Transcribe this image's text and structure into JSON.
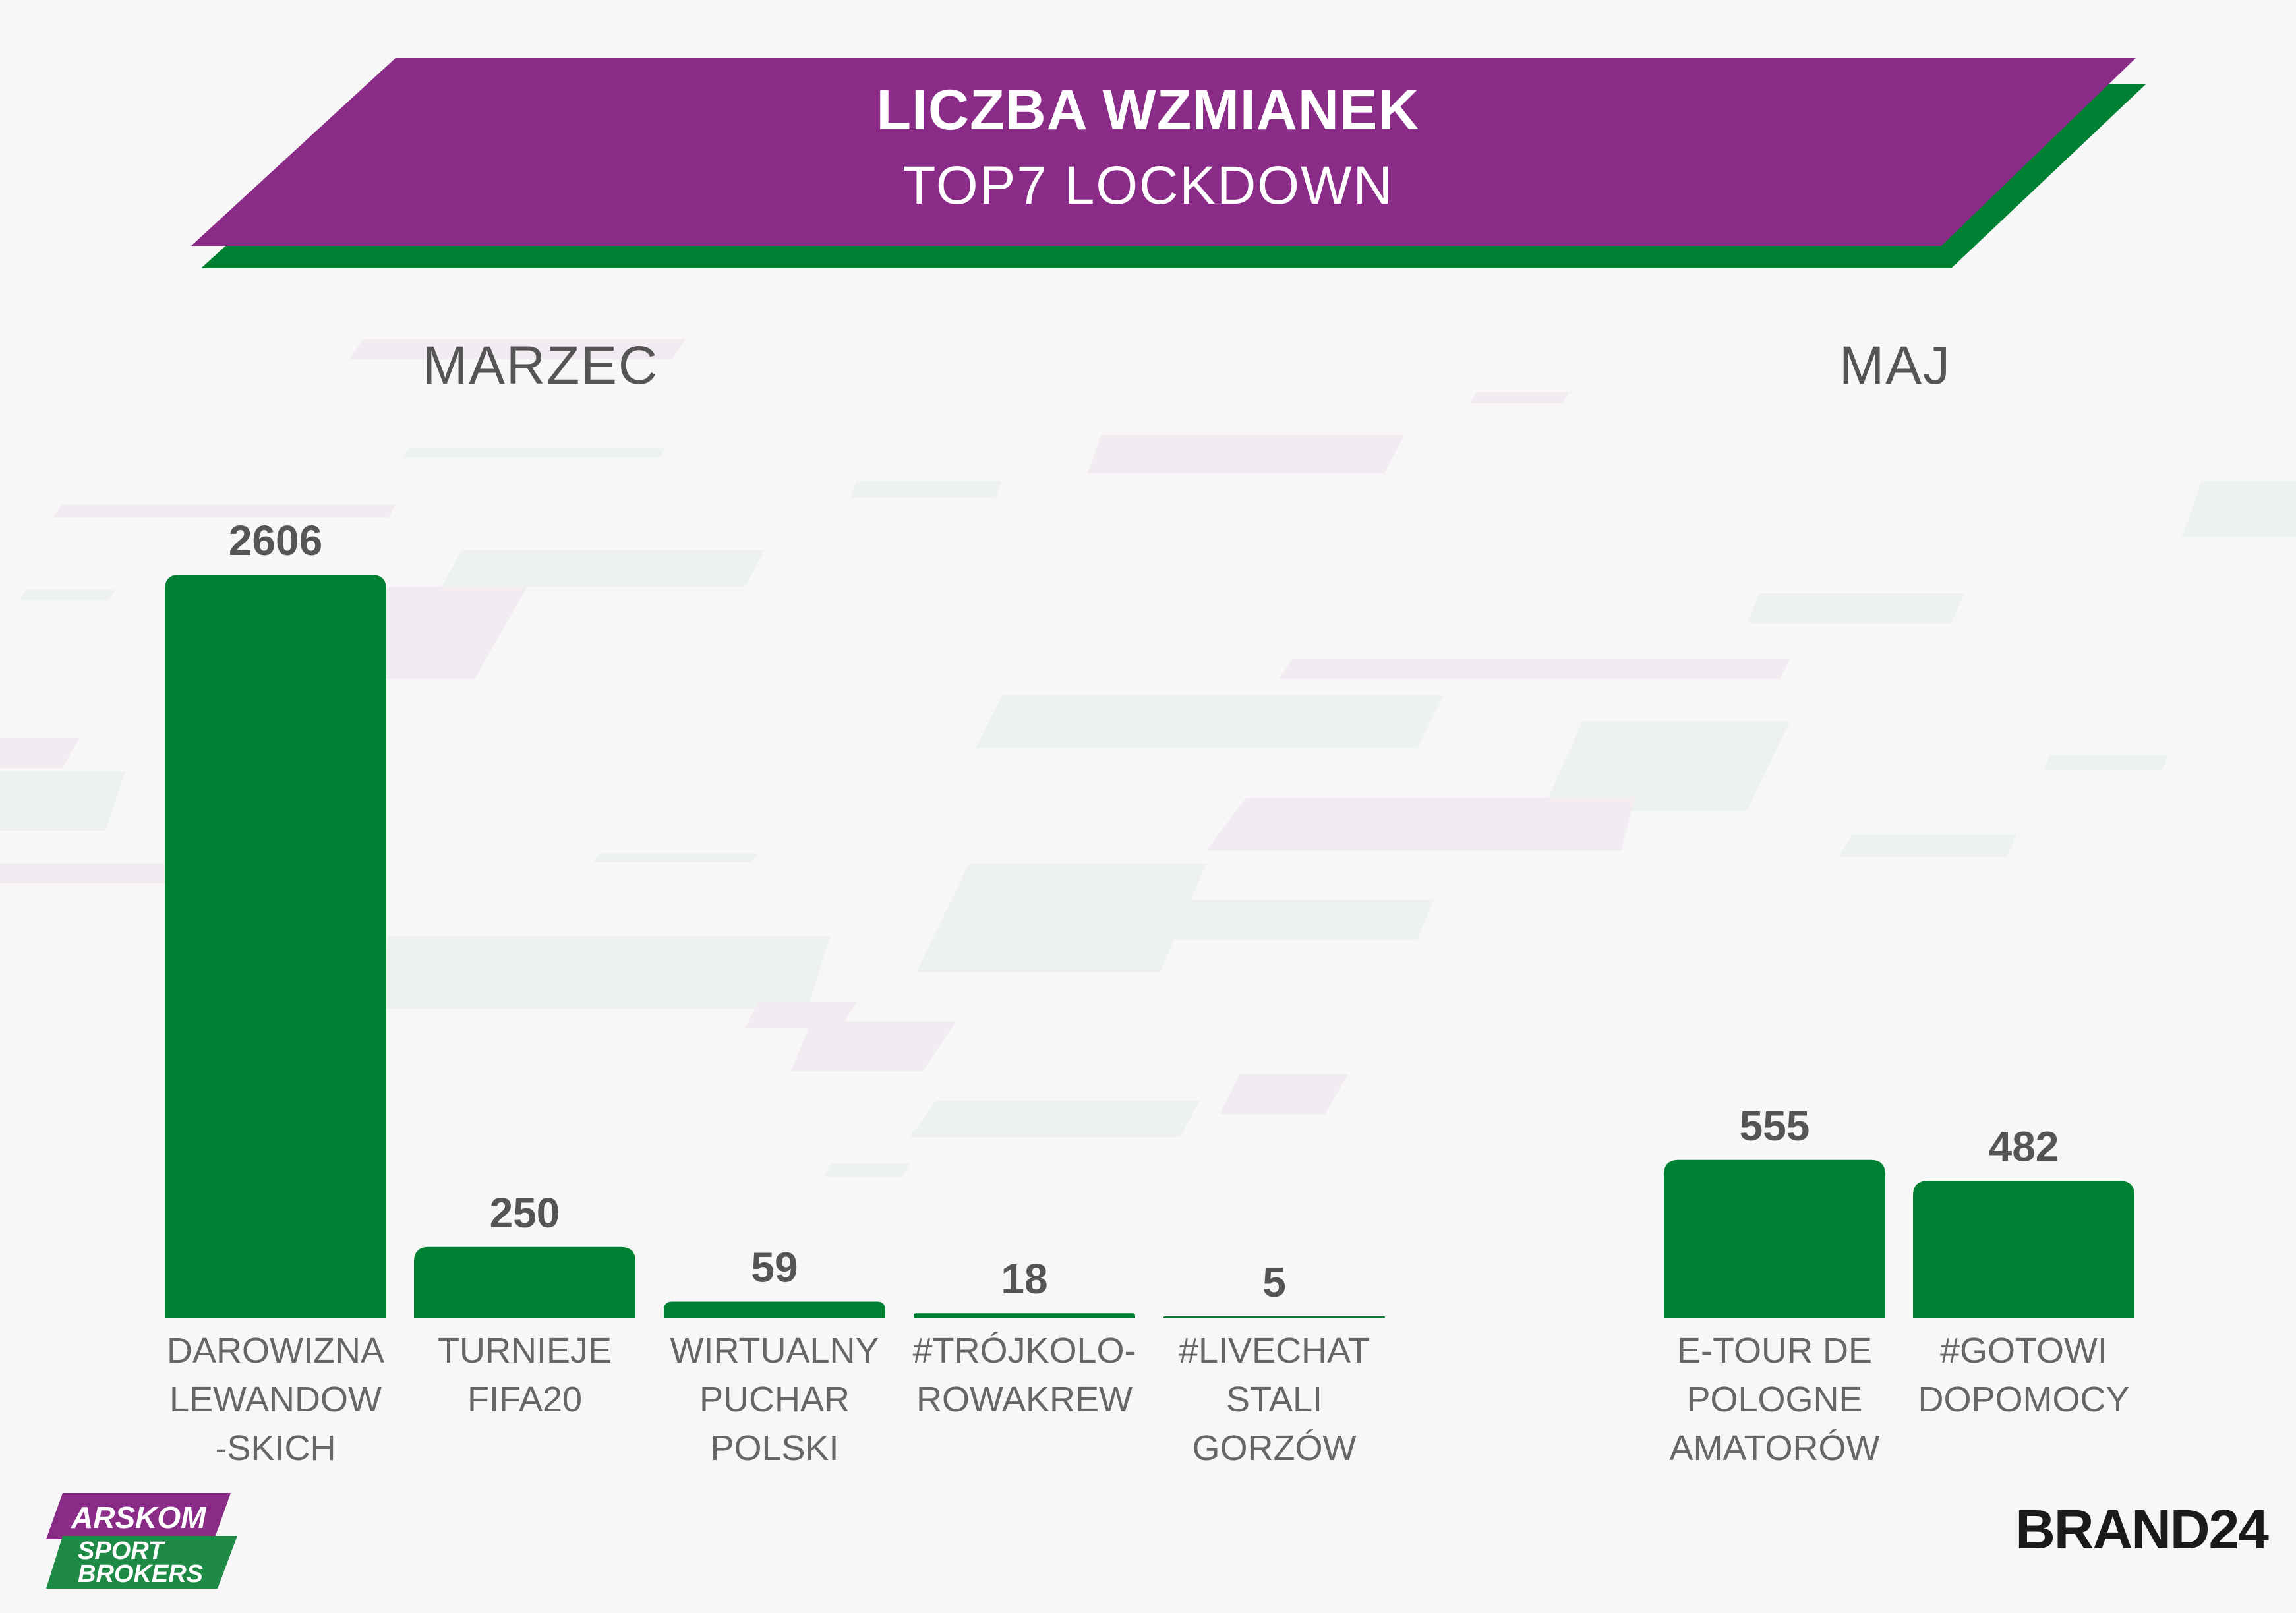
{
  "header": {
    "title": "LICZBA WZMIANEK",
    "subtitle": "TOP7 LOCKDOWN"
  },
  "sections": {
    "march": "MARZEC",
    "may": "MAJ"
  },
  "colors": {
    "bar": "#008033",
    "banner_purple": "#8a2c87",
    "banner_green": "#008033",
    "value_text": "#555555",
    "category_text": "#666666"
  },
  "chart_data": [
    {
      "type": "bar",
      "section": "MARZEC",
      "categories": [
        [
          "DAROWIZNA",
          "LEWANDOW",
          "-SKICH"
        ],
        [
          "TURNIEJE",
          "FIFA20"
        ],
        [
          "WIRTUALNY",
          "PUCHAR",
          "POLSKI"
        ],
        [
          "#TRÓJKOLO-",
          "ROWAKREW"
        ],
        [
          "#LIVECHAT",
          "STALI",
          "GORZÓW"
        ]
      ],
      "values": [
        2606,
        250,
        59,
        18,
        5
      ],
      "ylim": [
        0,
        2606
      ]
    },
    {
      "type": "bar",
      "section": "MAJ",
      "categories": [
        [
          "E-TOUR DE",
          "POLOGNE",
          "AMATORÓW"
        ],
        [
          "#GOTOWI",
          "DOPOMOCY"
        ]
      ],
      "values": [
        555,
        482
      ],
      "ylim": [
        0,
        2606
      ]
    }
  ],
  "logos": {
    "arskom_line1": "ARSKOM",
    "arskom_line2": "SPORT",
    "arskom_line3": "BROKERS",
    "brand24": "BRAND24"
  }
}
